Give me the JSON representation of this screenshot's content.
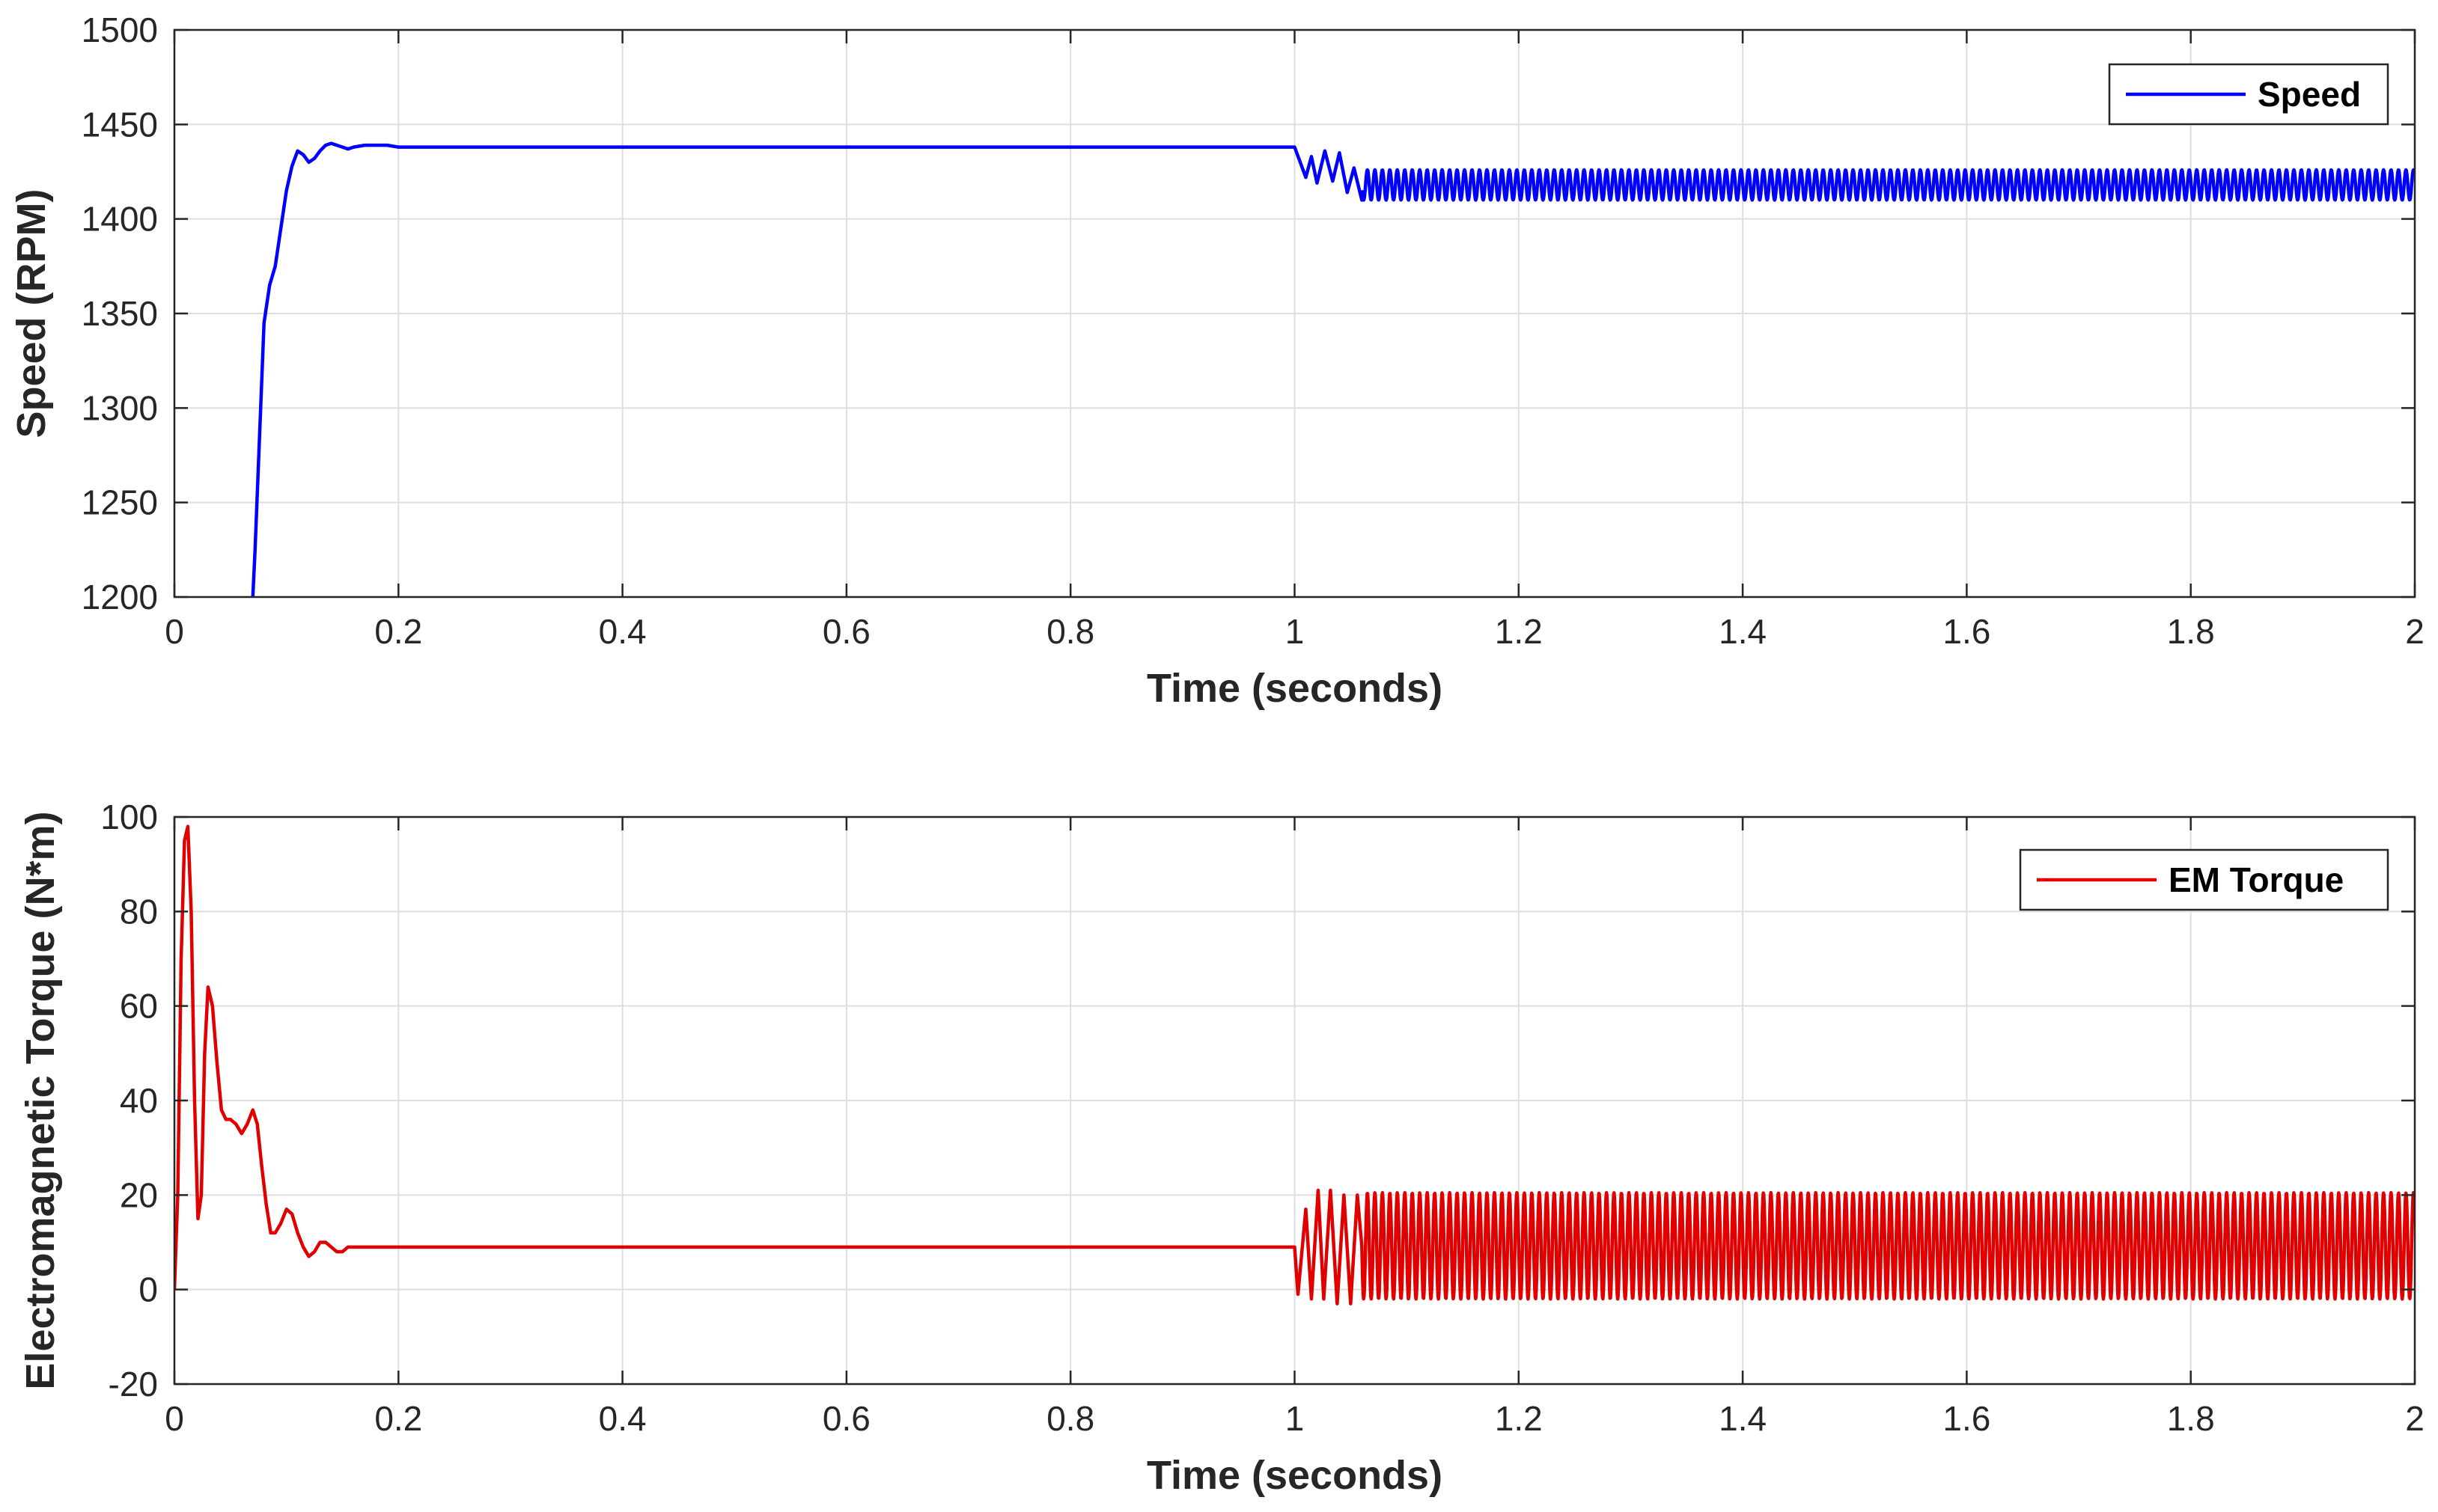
{
  "chart_data": [
    {
      "type": "line",
      "title": "",
      "xlabel": "Time (seconds)",
      "ylabel": "Speed (RPM)",
      "xlim": [
        0,
        2
      ],
      "ylim": [
        1200,
        1500
      ],
      "xticks": [
        0,
        0.2,
        0.4,
        0.6,
        0.8,
        1,
        1.2,
        1.4,
        1.6,
        1.8,
        2
      ],
      "xtick_labels": [
        "0",
        "0.2",
        "0.4",
        "0.6",
        "0.8",
        "1",
        "1.2",
        "1.4",
        "1.6",
        "1.8",
        "2"
      ],
      "yticks": [
        1200,
        1250,
        1300,
        1350,
        1400,
        1450,
        1500
      ],
      "ytick_labels": [
        "1200",
        "1250",
        "1300",
        "1350",
        "1400",
        "1450",
        "1500"
      ],
      "grid": true,
      "legend_position": "top-right",
      "series": [
        {
          "name": "Speed",
          "color": "#0000ff",
          "x": [
            0.07,
            0.072,
            0.075,
            0.08,
            0.085,
            0.09,
            0.095,
            0.1,
            0.105,
            0.11,
            0.115,
            0.12,
            0.125,
            0.13,
            0.135,
            0.14,
            0.145,
            0.15,
            0.155,
            0.16,
            0.17,
            0.18,
            0.19,
            0.2,
            0.22,
            0.25,
            0.3,
            1.0
          ],
          "y": [
            1200,
            1225,
            1270,
            1345,
            1365,
            1375,
            1395,
            1415,
            1428,
            1436,
            1434,
            1430,
            1432,
            1436,
            1439,
            1440,
            1439,
            1438,
            1437,
            1438,
            1439,
            1439,
            1439,
            1438,
            1438,
            1438,
            1438,
            1438
          ],
          "transition": {
            "x_start": 1.0,
            "x_end": 1.06,
            "osc_peaks": [
              {
                "x": 1.01,
                "y": 1422
              },
              {
                "x": 1.015,
                "y": 1433
              },
              {
                "x": 1.02,
                "y": 1419
              },
              {
                "x": 1.027,
                "y": 1436
              },
              {
                "x": 1.034,
                "y": 1420
              },
              {
                "x": 1.04,
                "y": 1435
              },
              {
                "x": 1.047,
                "y": 1414
              },
              {
                "x": 1.053,
                "y": 1427
              },
              {
                "x": 1.06,
                "y": 1410
              }
            ]
          },
          "steady_oscillation": {
            "x_start": 1.06,
            "x_end": 2.0,
            "min": 1410,
            "max": 1426,
            "period": 0.00667
          }
        }
      ]
    },
    {
      "type": "line",
      "title": "",
      "xlabel": "Time (seconds)",
      "ylabel": "Electromagnetic Torque  (N*m)",
      "xlim": [
        0,
        2
      ],
      "ylim": [
        -20,
        100
      ],
      "xticks": [
        0,
        0.2,
        0.4,
        0.6,
        0.8,
        1,
        1.2,
        1.4,
        1.6,
        1.8,
        2
      ],
      "xtick_labels": [
        "0",
        "0.2",
        "0.4",
        "0.6",
        "0.8",
        "1",
        "1.2",
        "1.4",
        "1.6",
        "1.8",
        "2"
      ],
      "yticks": [
        -20,
        0,
        20,
        40,
        60,
        80,
        100
      ],
      "ytick_labels": [
        "-20",
        "0",
        "20",
        "40",
        "60",
        "80",
        "100"
      ],
      "grid": true,
      "legend_position": "top-right",
      "series": [
        {
          "name": "EM Torque",
          "color": "#e00000",
          "x": [
            0.0,
            0.003,
            0.006,
            0.009,
            0.012,
            0.015,
            0.018,
            0.021,
            0.024,
            0.027,
            0.03,
            0.034,
            0.038,
            0.042,
            0.046,
            0.05,
            0.055,
            0.06,
            0.065,
            0.07,
            0.074,
            0.078,
            0.082,
            0.086,
            0.09,
            0.095,
            0.1,
            0.105,
            0.11,
            0.115,
            0.12,
            0.125,
            0.13,
            0.135,
            0.14,
            0.145,
            0.15,
            0.155,
            0.16,
            0.17,
            0.18,
            0.19,
            0.2,
            0.22,
            0.25,
            0.3,
            1.0
          ],
          "y": [
            0,
            20,
            70,
            95,
            98,
            80,
            40,
            15,
            20,
            50,
            64,
            60,
            48,
            38,
            36,
            36,
            35,
            33,
            35,
            38,
            35,
            26,
            18,
            12,
            12,
            14,
            17,
            16,
            12,
            9,
            7,
            8,
            10,
            10,
            9,
            8,
            8,
            9,
            9,
            9,
            9,
            9,
            9,
            9,
            9,
            9,
            9
          ],
          "transition": {
            "x_start": 1.0,
            "x_end": 1.06,
            "osc_peaks": [
              {
                "x": 1.003,
                "y": -1
              },
              {
                "x": 1.01,
                "y": 17
              },
              {
                "x": 1.015,
                "y": -2
              },
              {
                "x": 1.021,
                "y": 21
              },
              {
                "x": 1.026,
                "y": -2
              },
              {
                "x": 1.032,
                "y": 21
              },
              {
                "x": 1.038,
                "y": -3
              },
              {
                "x": 1.044,
                "y": 20
              },
              {
                "x": 1.05,
                "y": -3
              },
              {
                "x": 1.056,
                "y": 20
              }
            ]
          },
          "steady_oscillation": {
            "x_start": 1.06,
            "x_end": 2.0,
            "min": -2,
            "max": 20.5,
            "period": 0.00667
          }
        }
      ]
    }
  ]
}
